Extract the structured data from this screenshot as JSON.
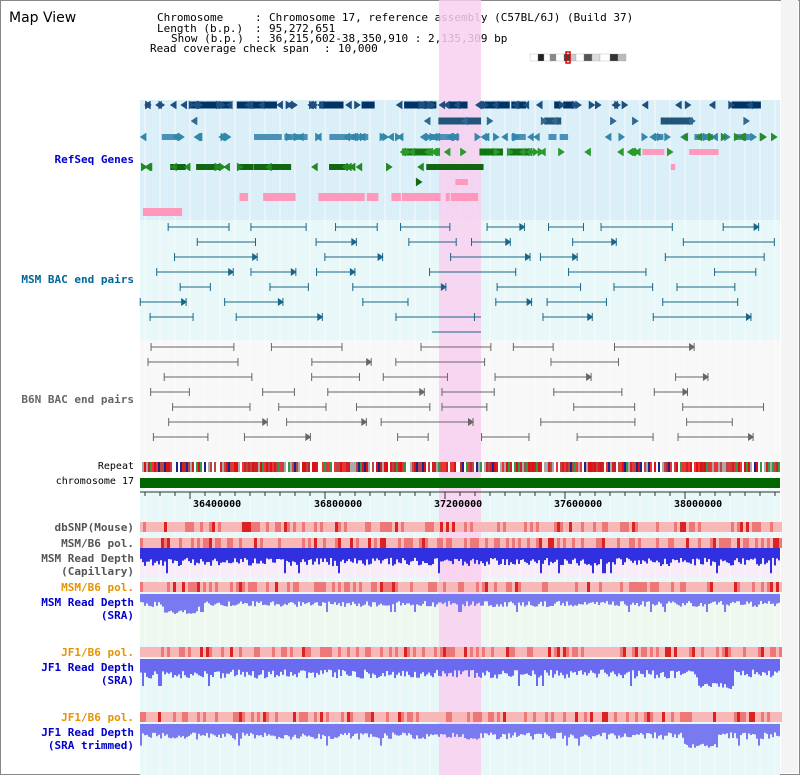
{
  "title": "Map View",
  "header": {
    "chromosome_label": "Chromosome",
    "chromosome_value": "Chromosome 17, reference assembly (C57BL/6J) (Build 37)",
    "length_label": "Length (b.p.)",
    "length_value": "95,272,651",
    "show_label": "Show (b.p.)",
    "show_value": "36,215,602-38,350,910 : 2,135,309 bp",
    "coverage_label": "Read coverage check span",
    "coverage_value": "10,000"
  },
  "tracks": {
    "refseq": "RefSeq Genes",
    "msm_bac": "MSM BAC end pairs",
    "b6n_bac": "B6N BAC end pairs",
    "repeat": "Repeat",
    "chromosome": "chromosome 17",
    "dbsnp": "dbSNP(Mouse)",
    "msm_b6_pol_1": "MSM/B6 pol.",
    "msm_read_cap_1": "MSM Read Depth",
    "msm_read_cap_2": "(Capillary)",
    "msm_b6_pol_2": "MSM/B6 pol.",
    "msm_read_sra_1": "MSM Read Depth",
    "msm_read_sra_2": "(SRA)",
    "jf1_b6_pol_1": "JF1/B6 pol.",
    "jf1_read_sra_1": "JF1 Read Depth",
    "jf1_read_sra_2": "(SRA)",
    "jf1_b6_pol_2": "JF1/B6 pol.",
    "jf1_trim_1": "JF1 Read Depth",
    "jf1_trim_2": "(SRA trimmed)"
  },
  "axis_ticks": [
    "36400000",
    "36800000",
    "37200000",
    "37600000",
    "38000000"
  ],
  "colors": {
    "refseq_label": "#0000cc",
    "msm_bac_label": "#006699",
    "b6n_bac_label": "#666666",
    "pol_label_dark": "#555555",
    "pol_label_orange": "#e59400",
    "sra_label": "#0000cc",
    "highlight": "#f8d0f0",
    "chromosome_bar": "#006600"
  }
}
